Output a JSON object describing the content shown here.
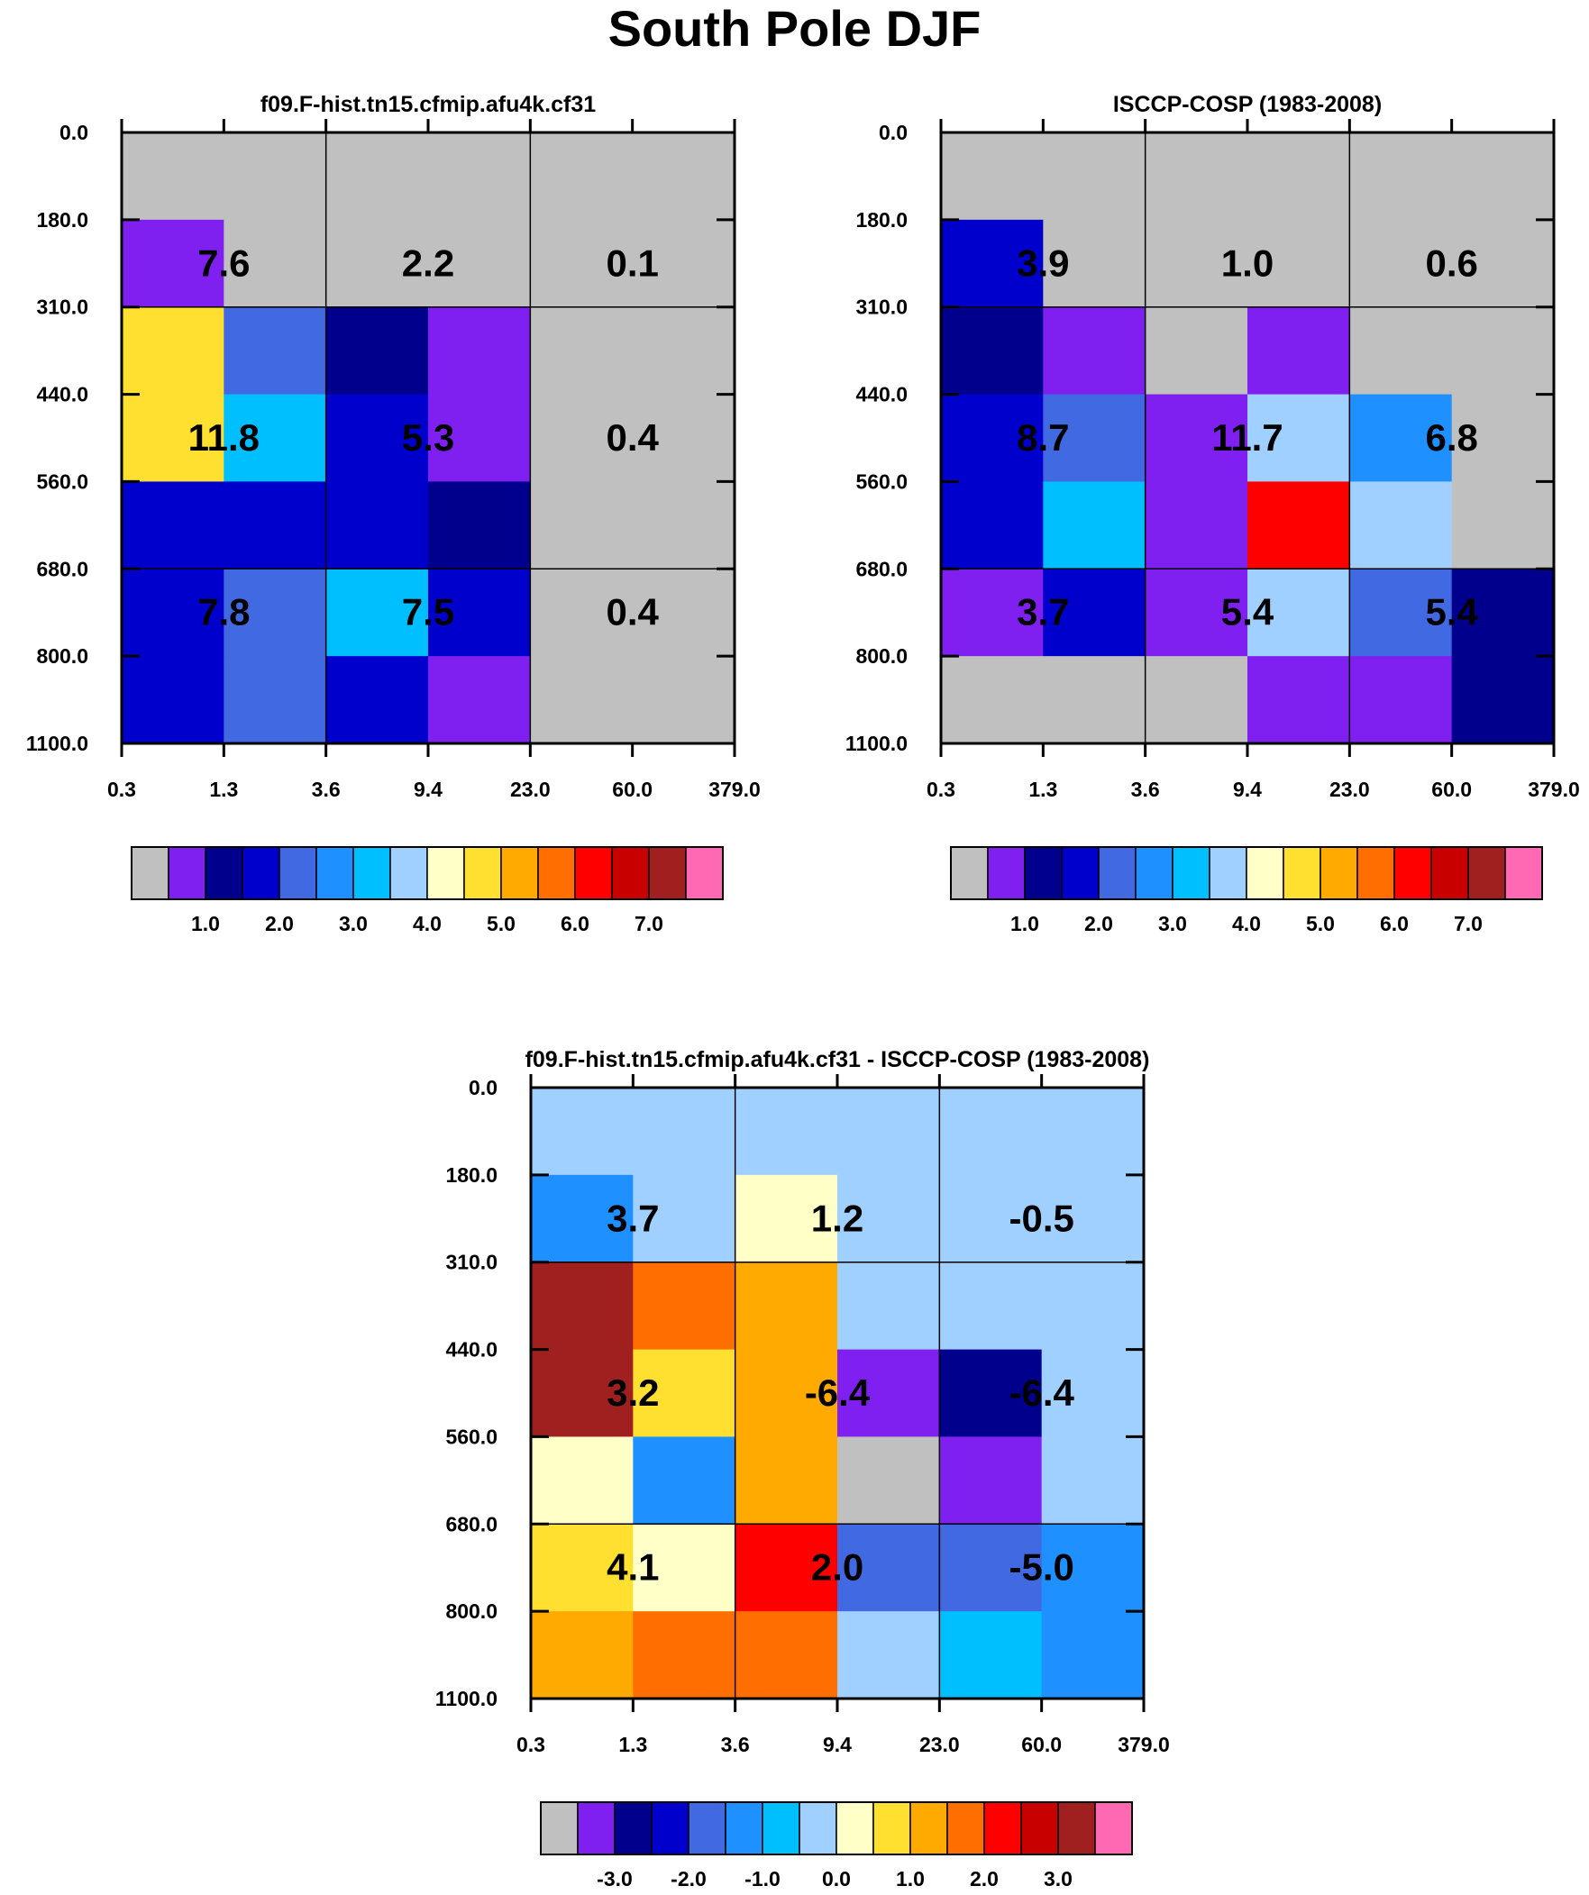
{
  "figure_title": "South Pole DJF",
  "colors": {
    "grid": "#000000",
    "palette": [
      "#c0c0c0",
      "#8020f0",
      "#00008c",
      "#0000cd",
      "#4169e1",
      "#1e90ff",
      "#00bfff",
      "#a0d0ff",
      "#ffffc8",
      "#ffe030",
      "#ffaa00",
      "#ff6e00",
      "#ff0000",
      "#c80000",
      "#a02020",
      "#ff69b4"
    ]
  },
  "chart_data": [
    {
      "type": "heatmap",
      "title": "f09.F-hist.tn15.cfmip.afu4k.cf31",
      "x_ticks": [
        "0.3",
        "1.3",
        "3.6",
        "9.4",
        "23.0",
        "60.0",
        "379.0"
      ],
      "y_ticks": [
        "0.0",
        "180.0",
        "310.0",
        "440.0",
        "560.0",
        "680.0",
        "800.0",
        "1100.0"
      ],
      "cell_color_index": [
        [
          0,
          0,
          0,
          0,
          0,
          0
        ],
        [
          1,
          0,
          0,
          0,
          0,
          0
        ],
        [
          9,
          4,
          2,
          1,
          0,
          0
        ],
        [
          9,
          6,
          3,
          1,
          0,
          0
        ],
        [
          3,
          3,
          3,
          2,
          0,
          0
        ],
        [
          3,
          4,
          6,
          3,
          0,
          0
        ],
        [
          3,
          4,
          3,
          1,
          0,
          0
        ]
      ],
      "box_values": [
        [
          "7.6",
          "2.2",
          "0.1"
        ],
        [
          "11.8",
          "5.3",
          "0.4"
        ],
        [
          "7.8",
          "7.5",
          "0.4"
        ]
      ],
      "colorbar_labels": [
        "1.0",
        "2.0",
        "3.0",
        "4.0",
        "5.0",
        "6.0",
        "7.0"
      ]
    },
    {
      "type": "heatmap",
      "title": "ISCCP-COSP (1983-2008)",
      "x_ticks": [
        "0.3",
        "1.3",
        "3.6",
        "9.4",
        "23.0",
        "60.0",
        "379.0"
      ],
      "y_ticks": [
        "0.0",
        "180.0",
        "310.0",
        "440.0",
        "560.0",
        "680.0",
        "800.0",
        "1100.0"
      ],
      "cell_color_index": [
        [
          0,
          0,
          0,
          0,
          0,
          0
        ],
        [
          3,
          0,
          0,
          0,
          0,
          0
        ],
        [
          2,
          1,
          0,
          1,
          0,
          0
        ],
        [
          3,
          4,
          1,
          7,
          5,
          0
        ],
        [
          3,
          6,
          1,
          12,
          7,
          0
        ],
        [
          1,
          3,
          1,
          7,
          4,
          2
        ],
        [
          0,
          0,
          0,
          1,
          1,
          2
        ]
      ],
      "box_values": [
        [
          "3.9",
          "1.0",
          "0.6"
        ],
        [
          "8.7",
          "11.7",
          "6.8"
        ],
        [
          "3.7",
          "5.4",
          "5.4"
        ]
      ],
      "colorbar_labels": [
        "1.0",
        "2.0",
        "3.0",
        "4.0",
        "5.0",
        "6.0",
        "7.0"
      ]
    },
    {
      "type": "heatmap",
      "title": "f09.F-hist.tn15.cfmip.afu4k.cf31 - ISCCP-COSP (1983-2008)",
      "x_ticks": [
        "0.3",
        "1.3",
        "3.6",
        "9.4",
        "23.0",
        "60.0",
        "379.0"
      ],
      "y_ticks": [
        "0.0",
        "180.0",
        "310.0",
        "440.0",
        "560.0",
        "680.0",
        "800.0",
        "1100.0"
      ],
      "cell_color_index": [
        [
          7,
          7,
          7,
          7,
          7,
          7
        ],
        [
          5,
          7,
          8,
          7,
          7,
          7
        ],
        [
          14,
          11,
          10,
          7,
          7,
          7
        ],
        [
          14,
          9,
          10,
          1,
          2,
          7
        ],
        [
          8,
          5,
          10,
          0,
          1,
          7
        ],
        [
          9,
          8,
          12,
          4,
          4,
          5
        ],
        [
          10,
          11,
          11,
          7,
          6,
          5
        ]
      ],
      "box_values": [
        [
          "3.7",
          "1.2",
          "-0.5"
        ],
        [
          "3.2",
          "-6.4",
          "-6.4"
        ],
        [
          "4.1",
          "2.0",
          "-5.0"
        ]
      ],
      "colorbar_labels": [
        "-3.0",
        "-2.0",
        "-1.0",
        "0.0",
        "1.0",
        "2.0",
        "3.0"
      ]
    }
  ]
}
